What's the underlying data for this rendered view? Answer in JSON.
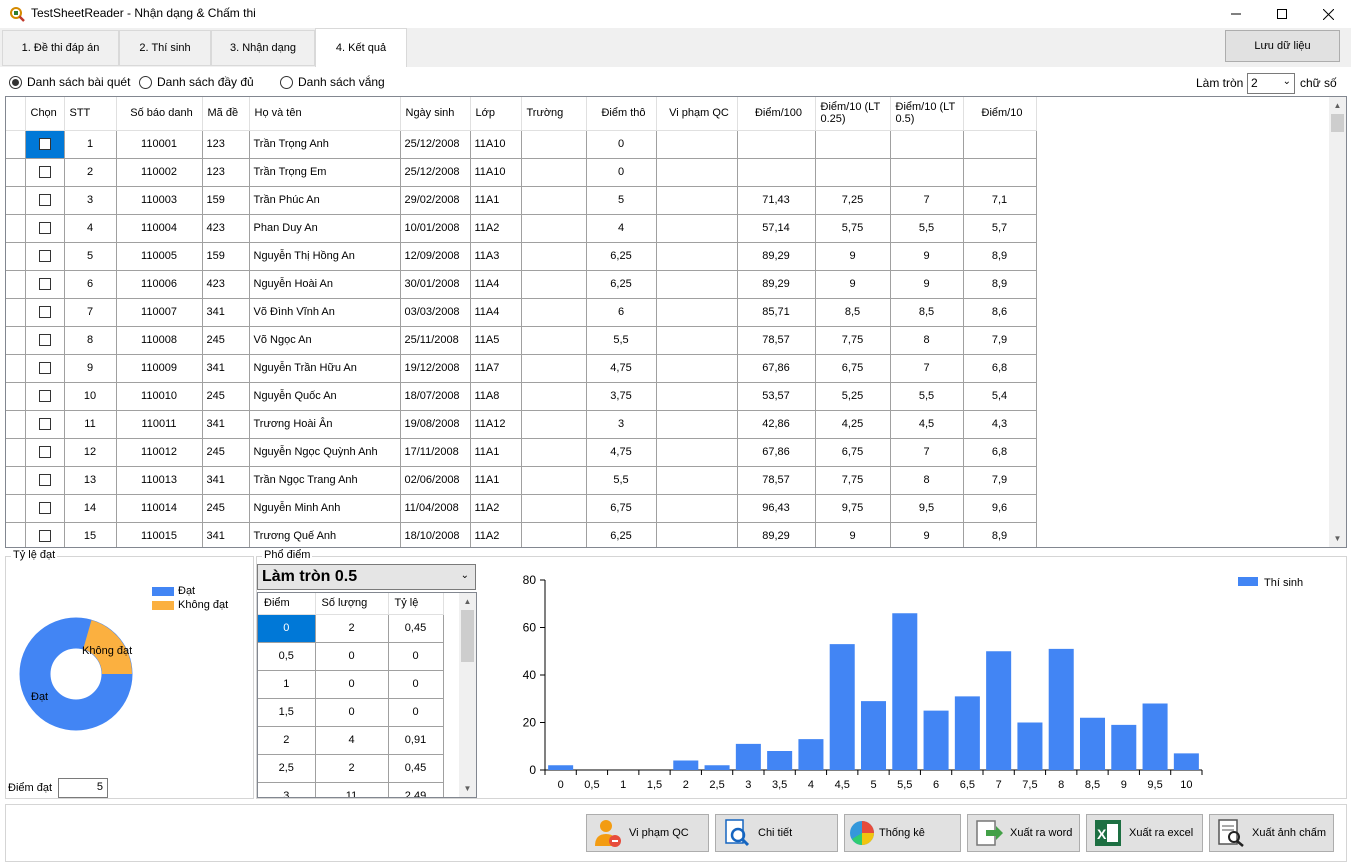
{
  "window": {
    "title": "TestSheetReader - Nhận dạng & Chấm thi"
  },
  "tabs": [
    {
      "label": "1. Đề thi đáp án"
    },
    {
      "label": "2. Thí sinh"
    },
    {
      "label": "3. Nhận dạng"
    },
    {
      "label": "4. Kết quả"
    }
  ],
  "active_tab": 3,
  "save_button": "Lưu dữ liệu",
  "list_options": [
    {
      "label": "Danh sách bài quét",
      "selected": true
    },
    {
      "label": "Danh sách đầy đủ",
      "selected": false
    },
    {
      "label": "Danh sách vắng",
      "selected": false
    }
  ],
  "rounding": {
    "label": "Làm tròn",
    "value": "2",
    "unit": "chữ số"
  },
  "grid": {
    "columns": [
      "Chọn",
      "STT",
      "Số báo danh",
      "Mã đề",
      "Họ và tên",
      "Ngày sinh",
      "Lớp",
      "Trường",
      "Điểm thô",
      "Vi phạm QC",
      "Điểm/100",
      "Điểm/10 (LT 0.25)",
      "Điểm/10 (LT 0.5)",
      "Điểm/10"
    ],
    "rows": [
      {
        "stt": "1",
        "sbd": "110001",
        "made": "123",
        "name": "Trần Trọng Anh",
        "dob": "25/12/2008",
        "lop": "11A10",
        "truong": "",
        "diemtho": "0",
        "vipham": "",
        "d100": "",
        "d10a": "",
        "d10b": "",
        "d10": ""
      },
      {
        "stt": "2",
        "sbd": "110002",
        "made": "123",
        "name": "Trần Trọng Em",
        "dob": "25/12/2008",
        "lop": "11A10",
        "truong": "",
        "diemtho": "0",
        "vipham": "",
        "d100": "",
        "d10a": "",
        "d10b": "",
        "d10": ""
      },
      {
        "stt": "3",
        "sbd": "110003",
        "made": "159",
        "name": "Trần Phúc An",
        "dob": "29/02/2008",
        "lop": "11A1",
        "truong": "",
        "diemtho": "5",
        "vipham": "",
        "d100": "71,43",
        "d10a": "7,25",
        "d10b": "7",
        "d10": "7,1"
      },
      {
        "stt": "4",
        "sbd": "110004",
        "made": "423",
        "name": "Phan Duy An",
        "dob": "10/01/2008",
        "lop": "11A2",
        "truong": "",
        "diemtho": "4",
        "vipham": "",
        "d100": "57,14",
        "d10a": "5,75",
        "d10b": "5,5",
        "d10": "5,7"
      },
      {
        "stt": "5",
        "sbd": "110005",
        "made": "159",
        "name": "Nguyễn Thị Hồng An",
        "dob": "12/09/2008",
        "lop": "11A3",
        "truong": "",
        "diemtho": "6,25",
        "vipham": "",
        "d100": "89,29",
        "d10a": "9",
        "d10b": "9",
        "d10": "8,9"
      },
      {
        "stt": "6",
        "sbd": "110006",
        "made": "423",
        "name": "Nguyễn Hoài An",
        "dob": "30/01/2008",
        "lop": "11A4",
        "truong": "",
        "diemtho": "6,25",
        "vipham": "",
        "d100": "89,29",
        "d10a": "9",
        "d10b": "9",
        "d10": "8,9"
      },
      {
        "stt": "7",
        "sbd": "110007",
        "made": "341",
        "name": "Võ Đình Vĩnh An",
        "dob": "03/03/2008",
        "lop": "11A4",
        "truong": "",
        "diemtho": "6",
        "vipham": "",
        "d100": "85,71",
        "d10a": "8,5",
        "d10b": "8,5",
        "d10": "8,6"
      },
      {
        "stt": "8",
        "sbd": "110008",
        "made": "245",
        "name": "Võ Ngọc An",
        "dob": "25/11/2008",
        "lop": "11A5",
        "truong": "",
        "diemtho": "5,5",
        "vipham": "",
        "d100": "78,57",
        "d10a": "7,75",
        "d10b": "8",
        "d10": "7,9"
      },
      {
        "stt": "9",
        "sbd": "110009",
        "made": "341",
        "name": "Nguyễn Trần Hữu An",
        "dob": "19/12/2008",
        "lop": "11A7",
        "truong": "",
        "diemtho": "4,75",
        "vipham": "",
        "d100": "67,86",
        "d10a": "6,75",
        "d10b": "7",
        "d10": "6,8"
      },
      {
        "stt": "10",
        "sbd": "110010",
        "made": "245",
        "name": "Nguyễn Quốc An",
        "dob": "18/07/2008",
        "lop": "11A8",
        "truong": "",
        "diemtho": "3,75",
        "vipham": "",
        "d100": "53,57",
        "d10a": "5,25",
        "d10b": "5,5",
        "d10": "5,4"
      },
      {
        "stt": "11",
        "sbd": "110011",
        "made": "341",
        "name": "Trương Hoài Ân",
        "dob": "19/08/2008",
        "lop": "11A12",
        "truong": "",
        "diemtho": "3",
        "vipham": "",
        "d100": "42,86",
        "d10a": "4,25",
        "d10b": "4,5",
        "d10": "4,3"
      },
      {
        "stt": "12",
        "sbd": "110012",
        "made": "245",
        "name": "Nguyễn Ngọc Quỳnh Anh",
        "dob": "17/11/2008",
        "lop": "11A1",
        "truong": "",
        "diemtho": "4,75",
        "vipham": "",
        "d100": "67,86",
        "d10a": "6,75",
        "d10b": "7",
        "d10": "6,8"
      },
      {
        "stt": "13",
        "sbd": "110013",
        "made": "341",
        "name": "Trần Ngọc Trang Anh",
        "dob": "02/06/2008",
        "lop": "11A1",
        "truong": "",
        "diemtho": "5,5",
        "vipham": "",
        "d100": "78,57",
        "d10a": "7,75",
        "d10b": "8",
        "d10": "7,9"
      },
      {
        "stt": "14",
        "sbd": "110014",
        "made": "245",
        "name": "Nguyễn Minh Anh",
        "dob": "11/04/2008",
        "lop": "11A2",
        "truong": "",
        "diemtho": "6,75",
        "vipham": "",
        "d100": "96,43",
        "d10a": "9,75",
        "d10b": "9,5",
        "d10": "9,6"
      },
      {
        "stt": "15",
        "sbd": "110015",
        "made": "341",
        "name": "Trương Quế Anh",
        "dob": "18/10/2008",
        "lop": "11A2",
        "truong": "",
        "diemtho": "6,25",
        "vipham": "",
        "d100": "89,29",
        "d10a": "9",
        "d10b": "9",
        "d10": "8,9"
      }
    ]
  },
  "pass_rate": {
    "group_label": "Tỷ lệ đạt",
    "legend": [
      {
        "label": "Đạt",
        "color": "#4285f4"
      },
      {
        "label": "Không đạt",
        "color": "#fbb040"
      }
    ],
    "slice_labels": [
      "Đạt",
      "Không đạt"
    ],
    "pass_score_label": "Điểm đạt",
    "pass_score_value": "5"
  },
  "distribution": {
    "group_label": "Phổ điểm",
    "rounding_select": "Làm tròn 0.5",
    "columns": [
      "Điểm",
      "Số lượng",
      "Tỷ lệ"
    ],
    "rows": [
      {
        "diem": "0",
        "soluong": "2",
        "tyle": "0,45"
      },
      {
        "diem": "0,5",
        "soluong": "0",
        "tyle": "0"
      },
      {
        "diem": "1",
        "soluong": "0",
        "tyle": "0"
      },
      {
        "diem": "1,5",
        "soluong": "0",
        "tyle": "0"
      },
      {
        "diem": "2",
        "soluong": "4",
        "tyle": "0,91"
      },
      {
        "diem": "2,5",
        "soluong": "2",
        "tyle": "0,45"
      },
      {
        "diem": "3",
        "soluong": "11",
        "tyle": "2,49"
      }
    ]
  },
  "chart_data": {
    "type": "bar",
    "categories": [
      "0",
      "0,5",
      "1",
      "1,5",
      "2",
      "2,5",
      "3",
      "3,5",
      "4",
      "4,5",
      "5",
      "5,5",
      "6",
      "6,5",
      "7",
      "7,5",
      "8",
      "8,5",
      "9",
      "9,5",
      "10"
    ],
    "series": [
      {
        "name": "Thí sinh",
        "color": "#4285f4",
        "values": [
          2,
          0,
          0,
          0,
          4,
          2,
          11,
          8,
          13,
          53,
          29,
          66,
          25,
          31,
          50,
          20,
          51,
          22,
          19,
          28,
          7
        ]
      }
    ],
    "ylim": [
      0,
      80
    ],
    "yticks": [
      "0",
      "20",
      "40",
      "60",
      "80"
    ],
    "legend_position": "top-right",
    "grid": false
  },
  "actions": [
    {
      "label": "Vi phạm QC",
      "icon": "user-violation-icon"
    },
    {
      "label": "Chi tiết",
      "icon": "document-search-icon"
    },
    {
      "label": "Thống kê",
      "icon": "pie-chart-icon"
    },
    {
      "label": "Xuất ra word",
      "icon": "export-word-icon"
    },
    {
      "label": "Xuất ra excel",
      "icon": "excel-icon"
    },
    {
      "label": "Xuất ảnh chấm",
      "icon": "image-search-icon"
    }
  ]
}
